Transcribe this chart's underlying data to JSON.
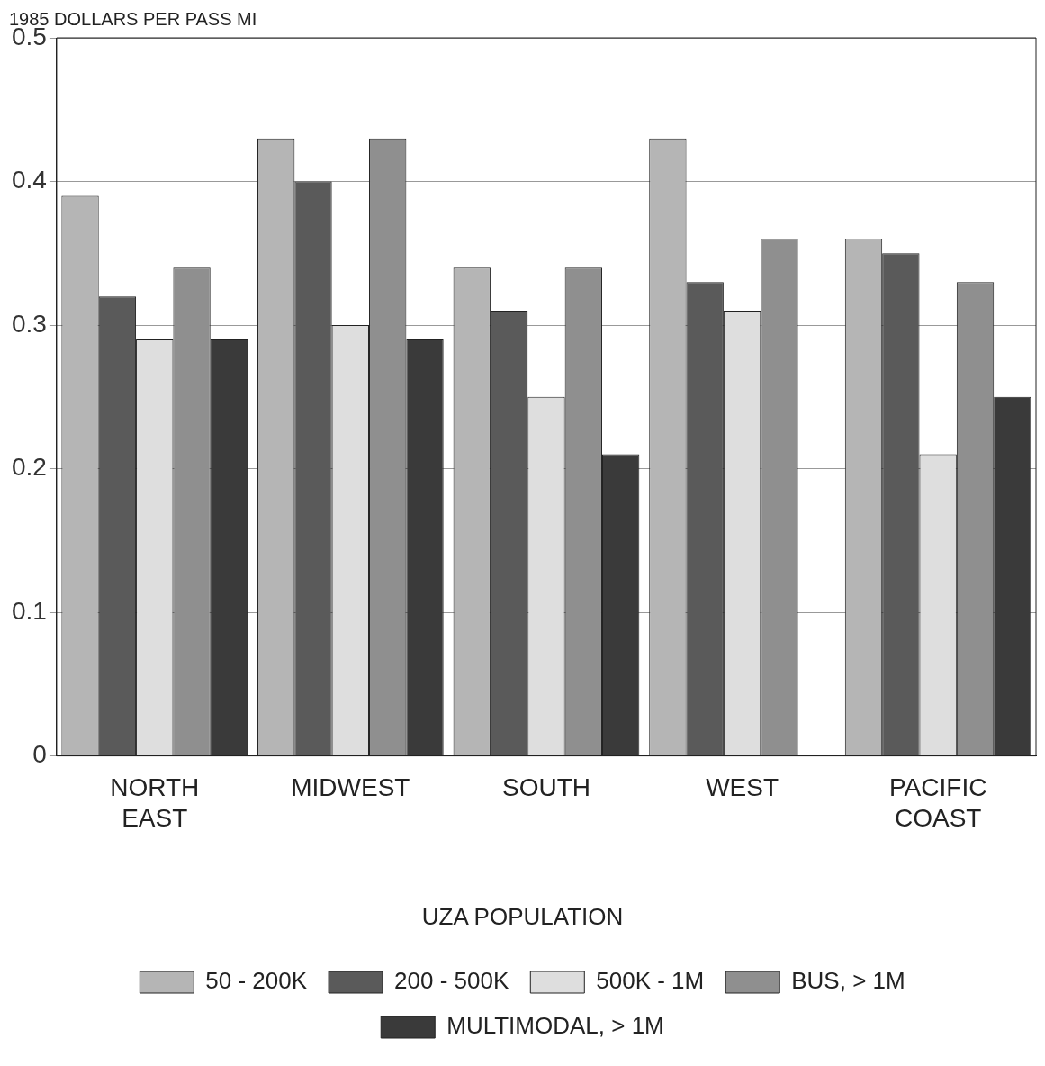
{
  "chart_data": {
    "type": "bar",
    "ylabel": "1985 DOLLARS PER PASS MI",
    "legend_title": "UZA POPULATION",
    "categories": [
      "NORTH EAST",
      "MIDWEST",
      "SOUTH",
      "WEST",
      "PACIFIC COAST"
    ],
    "series": [
      {
        "name": "50 - 200K",
        "color": "#b5b5b5",
        "values": [
          0.39,
          0.43,
          0.34,
          0.43,
          0.36
        ]
      },
      {
        "name": "200 - 500K",
        "color": "#5a5a5a",
        "values": [
          0.32,
          0.4,
          0.31,
          0.33,
          0.35
        ]
      },
      {
        "name": "500K - 1M",
        "color": "#dedede",
        "values": [
          0.29,
          0.3,
          0.25,
          0.31,
          0.21
        ]
      },
      {
        "name": "BUS, > 1M",
        "color": "#8f8f8f",
        "values": [
          0.34,
          0.43,
          0.34,
          0.36,
          0.33
        ]
      },
      {
        "name": "MULTIMODAL, > 1M",
        "color": "#3a3a3a",
        "values": [
          0.29,
          0.29,
          0.21,
          null,
          0.25
        ]
      }
    ],
    "ylim": [
      0,
      0.5
    ],
    "yticks": [
      0,
      0.1,
      0.2,
      0.3,
      0.4,
      0.5
    ],
    "grid": "y",
    "legend": "bottom"
  }
}
